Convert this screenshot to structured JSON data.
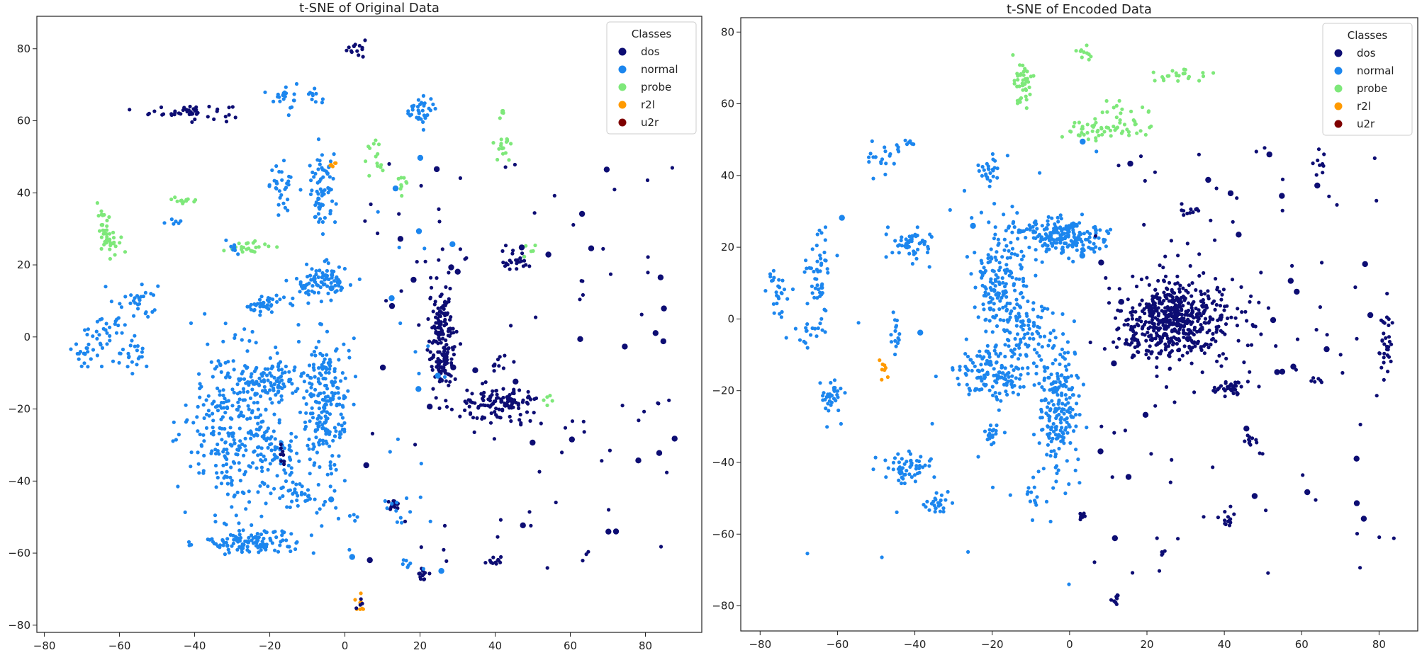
{
  "chart_data": [
    {
      "type": "scatter",
      "title": "t-SNE of Original Data",
      "xlim": [
        -82,
        95
      ],
      "ylim": [
        -82,
        89
      ],
      "xticks": [
        -80,
        -60,
        -40,
        -20,
        0,
        20,
        40,
        60,
        80
      ],
      "yticks": [
        -80,
        -60,
        -40,
        -20,
        0,
        20,
        40,
        60,
        80
      ],
      "legend": {
        "title": "Classes",
        "entries": [
          "dos",
          "normal",
          "probe",
          "r2l",
          "u2r"
        ],
        "position": "top-right"
      },
      "colors": {
        "dos": "#0d0d73",
        "normal": "#1c86ee",
        "probe": "#7ee87a",
        "r2l": "#ff9a00",
        "u2r": "#7f0000"
      },
      "clusters": [
        {
          "class": "dos",
          "x": 3,
          "y": 80,
          "sx": 1.2,
          "sy": 1.5,
          "n": 14
        },
        {
          "class": "dos",
          "x": -41,
          "y": 62.5,
          "sx": 6.5,
          "sy": 1.0,
          "n": 45
        },
        {
          "class": "normal",
          "x": -16,
          "y": 67,
          "sx": 1.5,
          "sy": 2.5,
          "n": 22
        },
        {
          "class": "normal",
          "x": -9,
          "y": 67,
          "sx": 1.2,
          "sy": 1.2,
          "n": 10
        },
        {
          "class": "normal",
          "x": 20,
          "y": 63,
          "sx": 2.0,
          "sy": 1.8,
          "n": 35
        },
        {
          "class": "probe",
          "x": 42,
          "y": 62,
          "sx": 0.6,
          "sy": 1.0,
          "n": 5
        },
        {
          "class": "probe",
          "x": 42,
          "y": 53,
          "sx": 1.2,
          "sy": 2.0,
          "n": 16
        },
        {
          "class": "probe",
          "x": 8,
          "y": 49,
          "sx": 1.5,
          "sy": 2.5,
          "n": 14
        },
        {
          "class": "probe",
          "x": 15,
          "y": 43,
          "sx": 0.8,
          "sy": 1.5,
          "n": 9
        },
        {
          "class": "normal",
          "x": -16,
          "y": 42,
          "sx": 2.0,
          "sy": 3.0,
          "n": 30
        },
        {
          "class": "normal",
          "x": -6,
          "y": 40,
          "sx": 1.8,
          "sy": 5.0,
          "n": 70
        },
        {
          "class": "r2l",
          "x": -3,
          "y": 48,
          "sx": 0.8,
          "sy": 0.6,
          "n": 6
        },
        {
          "class": "probe",
          "x": -43,
          "y": 38,
          "sx": 1.5,
          "sy": 0.6,
          "n": 12
        },
        {
          "class": "probe",
          "x": -63,
          "y": 29,
          "sx": 1.5,
          "sy": 3.0,
          "n": 45
        },
        {
          "class": "normal",
          "x": -45,
          "y": 32,
          "sx": 2.0,
          "sy": 0.5,
          "n": 6
        },
        {
          "class": "probe",
          "x": -25,
          "y": 25,
          "sx": 2.5,
          "sy": 0.8,
          "n": 22
        },
        {
          "class": "normal",
          "x": -30,
          "y": 25,
          "sx": 1.0,
          "sy": 1.5,
          "n": 8
        },
        {
          "class": "normal",
          "x": -6,
          "y": 15,
          "sx": 3.5,
          "sy": 2.5,
          "n": 80
        },
        {
          "class": "normal",
          "x": -22,
          "y": 9,
          "sx": 3.0,
          "sy": 1.5,
          "n": 40
        },
        {
          "class": "normal",
          "x": -62,
          "y": 4,
          "sx": 1.5,
          "sy": 2.0,
          "n": 12
        },
        {
          "class": "normal",
          "x": -55,
          "y": 10,
          "sx": 3.0,
          "sy": 3.0,
          "n": 30
        },
        {
          "class": "normal",
          "x": -57,
          "y": -4,
          "sx": 3.5,
          "sy": 2.5,
          "n": 25
        },
        {
          "class": "normal",
          "x": -70,
          "y": -4,
          "sx": 1.8,
          "sy": 2.0,
          "n": 20
        },
        {
          "class": "normal",
          "x": -65,
          "y": 0,
          "sx": 2.0,
          "sy": 2.0,
          "n": 15
        },
        {
          "class": "dos",
          "x": 26,
          "y": -1,
          "sx": 1.8,
          "sy": 8.0,
          "n": 170
        },
        {
          "class": "dos",
          "x": 41,
          "y": -19,
          "sx": 5.0,
          "sy": 2.5,
          "n": 120
        },
        {
          "class": "dos",
          "x": 46,
          "y": 21,
          "sx": 2.0,
          "sy": 1.5,
          "n": 25
        },
        {
          "class": "dos",
          "x": 41,
          "y": -7,
          "sx": 1.5,
          "sy": 1.5,
          "n": 10
        },
        {
          "class": "normal",
          "x": -29,
          "y": -25,
          "sx": 7.0,
          "sy": 12.0,
          "n": 300
        },
        {
          "class": "normal",
          "x": -24,
          "y": -57,
          "sx": 7.0,
          "sy": 1.5,
          "n": 120
        },
        {
          "class": "normal",
          "x": -20,
          "y": -12,
          "sx": 5.0,
          "sy": 2.5,
          "n": 90
        },
        {
          "class": "normal",
          "x": -5,
          "y": -20,
          "sx": 3.0,
          "sy": 10.0,
          "n": 220
        },
        {
          "class": "normal",
          "x": -18,
          "y": -32,
          "sx": 2.5,
          "sy": 4.0,
          "n": 40
        },
        {
          "class": "normal",
          "x": -13,
          "y": -43,
          "sx": 4.0,
          "sy": 2.0,
          "n": 30
        },
        {
          "class": "dos",
          "x": -17,
          "y": -34,
          "sx": 0.6,
          "sy": 2.5,
          "n": 8
        },
        {
          "class": "dos",
          "x": 13,
          "y": -46,
          "sx": 0.8,
          "sy": 1.5,
          "n": 14
        },
        {
          "class": "normal",
          "x": 15,
          "y": -47,
          "sx": 2.0,
          "sy": 2.5,
          "n": 10
        },
        {
          "class": "dos",
          "x": 21,
          "y": -66,
          "sx": 0.8,
          "sy": 1.2,
          "n": 12
        },
        {
          "class": "normal",
          "x": 16,
          "y": -63,
          "sx": 1.0,
          "sy": 0.6,
          "n": 6
        },
        {
          "class": "dos",
          "x": 40,
          "y": -62,
          "sx": 1.0,
          "sy": 0.8,
          "n": 10
        },
        {
          "class": "r2l",
          "x": 4,
          "y": -74,
          "sx": 0.8,
          "sy": 1.0,
          "n": 8
        },
        {
          "class": "dos",
          "x": 4,
          "y": -74,
          "sx": 0.6,
          "sy": 0.8,
          "n": 4
        },
        {
          "class": "normal",
          "x": 3,
          "y": -50,
          "sx": 0.8,
          "sy": 0.6,
          "n": 4
        },
        {
          "class": "probe",
          "x": 54,
          "y": -17,
          "sx": 0.6,
          "sy": 0.8,
          "n": 5
        },
        {
          "class": "probe",
          "x": 49,
          "y": 24,
          "sx": 1.0,
          "sy": 1.0,
          "n": 5
        }
      ],
      "scatter": {
        "class": "dos",
        "xmin": 5,
        "xmax": 88,
        "ymin": -65,
        "ymax": 50,
        "n": 110
      },
      "scatter_normal": {
        "class": "normal",
        "xmin": -20,
        "xmax": 30,
        "ymin": -65,
        "ymax": 50,
        "n": 40
      }
    },
    {
      "type": "scatter",
      "title": "t-SNE of Encoded Data",
      "xlim": [
        -85,
        90
      ],
      "ylim": [
        -87,
        84
      ],
      "xticks": [
        -80,
        -60,
        -40,
        -20,
        0,
        20,
        40,
        60,
        80
      ],
      "yticks": [
        -80,
        -60,
        -40,
        -20,
        0,
        20,
        40,
        60,
        80
      ],
      "legend": {
        "title": "Classes",
        "entries": [
          "dos",
          "normal",
          "probe",
          "r2l",
          "u2r"
        ],
        "position": "top-right"
      },
      "colors": {
        "dos": "#0d0d73",
        "normal": "#1c86ee",
        "probe": "#7ee87a",
        "r2l": "#ff9a00",
        "u2r": "#7f0000"
      },
      "clusters": [
        {
          "class": "probe",
          "x": -12,
          "y": 65,
          "sx": 1.2,
          "sy": 3.0,
          "n": 45
        },
        {
          "class": "probe",
          "x": 5,
          "y": 52,
          "sx": 2.5,
          "sy": 1.5,
          "n": 30
        },
        {
          "class": "probe",
          "x": 15,
          "y": 55,
          "sx": 4.0,
          "sy": 2.5,
          "n": 40
        },
        {
          "class": "probe",
          "x": 28,
          "y": 68,
          "sx": 4.0,
          "sy": 1.0,
          "n": 22
        },
        {
          "class": "probe",
          "x": 4,
          "y": 74,
          "sx": 1.0,
          "sy": 1.0,
          "n": 10
        },
        {
          "class": "normal",
          "x": -49,
          "y": 45,
          "sx": 2.0,
          "sy": 2.5,
          "n": 20
        },
        {
          "class": "normal",
          "x": -42,
          "y": 49,
          "sx": 1.5,
          "sy": 0.6,
          "n": 8
        },
        {
          "class": "normal",
          "x": -21,
          "y": 41,
          "sx": 1.5,
          "sy": 2.5,
          "n": 25
        },
        {
          "class": "normal",
          "x": -41,
          "y": 21,
          "sx": 3.0,
          "sy": 2.5,
          "n": 55
        },
        {
          "class": "normal",
          "x": -65,
          "y": 12,
          "sx": 1.5,
          "sy": 7.0,
          "n": 50
        },
        {
          "class": "normal",
          "x": -76,
          "y": 8,
          "sx": 1.8,
          "sy": 2.5,
          "n": 25
        },
        {
          "class": "normal",
          "x": -68,
          "y": -5,
          "sx": 2.0,
          "sy": 2.0,
          "n": 15
        },
        {
          "class": "normal",
          "x": -61,
          "y": -22,
          "sx": 1.8,
          "sy": 3.0,
          "n": 35
        },
        {
          "class": "normal",
          "x": -45,
          "y": -3,
          "sx": 0.6,
          "sy": 4.0,
          "n": 15
        },
        {
          "class": "normal",
          "x": -42,
          "y": -42,
          "sx": 3.0,
          "sy": 2.5,
          "n": 55
        },
        {
          "class": "normal",
          "x": -34,
          "y": -52,
          "sx": 1.5,
          "sy": 2.0,
          "n": 25
        },
        {
          "class": "normal",
          "x": -18,
          "y": 10,
          "sx": 3.5,
          "sy": 9.0,
          "n": 180
        },
        {
          "class": "normal",
          "x": -2,
          "y": 23,
          "sx": 6.0,
          "sy": 2.5,
          "n": 200
        },
        {
          "class": "normal",
          "x": -19,
          "y": -14,
          "sx": 6.0,
          "sy": 4.0,
          "n": 160
        },
        {
          "class": "normal",
          "x": -3,
          "y": -25,
          "sx": 3.0,
          "sy": 10.0,
          "n": 200
        },
        {
          "class": "normal",
          "x": -10,
          "y": -2,
          "sx": 3.0,
          "sy": 4.0,
          "n": 60
        },
        {
          "class": "normal",
          "x": -20,
          "y": -32,
          "sx": 1.5,
          "sy": 2.0,
          "n": 20
        },
        {
          "class": "normal",
          "x": -10,
          "y": -50,
          "sx": 1.0,
          "sy": 3.0,
          "n": 12
        },
        {
          "class": "r2l",
          "x": -48,
          "y": -14,
          "sx": 0.5,
          "sy": 2.0,
          "n": 8
        },
        {
          "class": "dos",
          "x": 28,
          "y": 0,
          "sx": 7.0,
          "sy": 5.5,
          "n": 550
        },
        {
          "class": "dos",
          "x": 41,
          "y": -19,
          "sx": 3.0,
          "sy": 1.0,
          "n": 40
        },
        {
          "class": "dos",
          "x": 31,
          "y": 30,
          "sx": 1.5,
          "sy": 0.8,
          "n": 12
        },
        {
          "class": "dos",
          "x": 82,
          "y": -7,
          "sx": 1.0,
          "sy": 4.0,
          "n": 30
        },
        {
          "class": "dos",
          "x": 16,
          "y": -7,
          "sx": 1.0,
          "sy": 2.0,
          "n": 12
        },
        {
          "class": "dos",
          "x": 47,
          "y": -35,
          "sx": 1.0,
          "sy": 1.5,
          "n": 10
        },
        {
          "class": "dos",
          "x": 41,
          "y": -56,
          "sx": 1.0,
          "sy": 1.5,
          "n": 12
        },
        {
          "class": "dos",
          "x": 3,
          "y": -55,
          "sx": 0.6,
          "sy": 1.0,
          "n": 8
        },
        {
          "class": "dos",
          "x": 12,
          "y": -78,
          "sx": 0.6,
          "sy": 1.0,
          "n": 8
        },
        {
          "class": "dos",
          "x": 64,
          "y": -17,
          "sx": 0.8,
          "sy": 0.6,
          "n": 6
        },
        {
          "class": "dos",
          "x": 24,
          "y": -65,
          "sx": 0.5,
          "sy": 0.8,
          "n": 4
        },
        {
          "class": "dos",
          "x": 65,
          "y": 43,
          "sx": 1.0,
          "sy": 1.5,
          "n": 8
        }
      ],
      "scatter": {
        "class": "dos",
        "xmin": 5,
        "xmax": 85,
        "ymin": -72,
        "ymax": 50,
        "n": 110
      },
      "scatter_normal": {
        "class": "normal",
        "xmin": -75,
        "xmax": 10,
        "ymin": -75,
        "ymax": 50,
        "n": 30
      }
    }
  ]
}
